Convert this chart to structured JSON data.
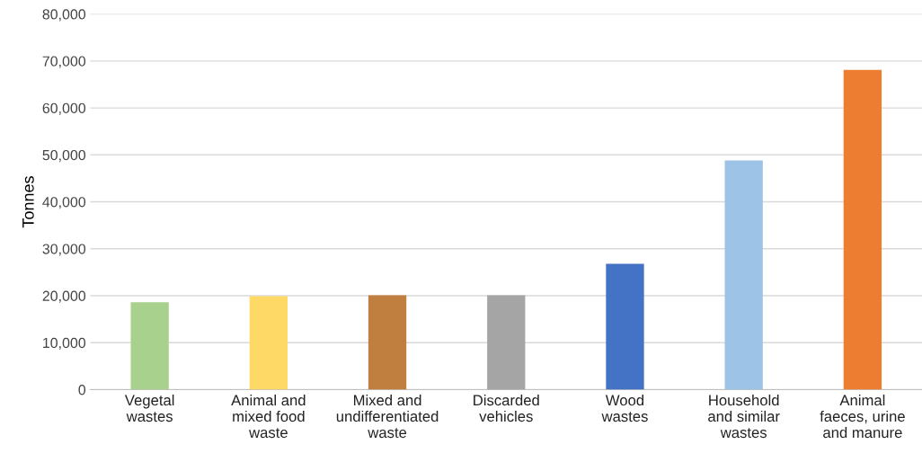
{
  "chart_data": {
    "type": "bar",
    "ylabel": "Tonnes",
    "categories": [
      "Vegetal\nwastes",
      "Animal and\nmixed food\nwaste",
      "Mixed and\nundifferentiated\nwaste",
      "Discarded\nvehicles",
      "Wood\nwastes",
      "Household\nand similar\nwastes",
      "Animal\nfaeces, urine\nand manure"
    ],
    "values": [
      18600,
      19900,
      20100,
      20100,
      26800,
      48800,
      68100
    ],
    "colors": [
      "#a9d18e",
      "#ffd966",
      "#c07f3f",
      "#a5a5a5",
      "#4472c4",
      "#9dc3e6",
      "#ed7d31"
    ],
    "ylim": [
      0,
      80000
    ],
    "yticks": [
      {
        "value": 0,
        "label": "0"
      },
      {
        "value": 10000,
        "label": "10,000"
      },
      {
        "value": 20000,
        "label": "20,000"
      },
      {
        "value": 30000,
        "label": "30,000"
      },
      {
        "value": 40000,
        "label": "40,000"
      },
      {
        "value": 50000,
        "label": "50,000"
      },
      {
        "value": 60000,
        "label": "60,000"
      },
      {
        "value": 70000,
        "label": "70,000"
      },
      {
        "value": 80000,
        "label": "80,000"
      }
    ],
    "grid": "y"
  }
}
